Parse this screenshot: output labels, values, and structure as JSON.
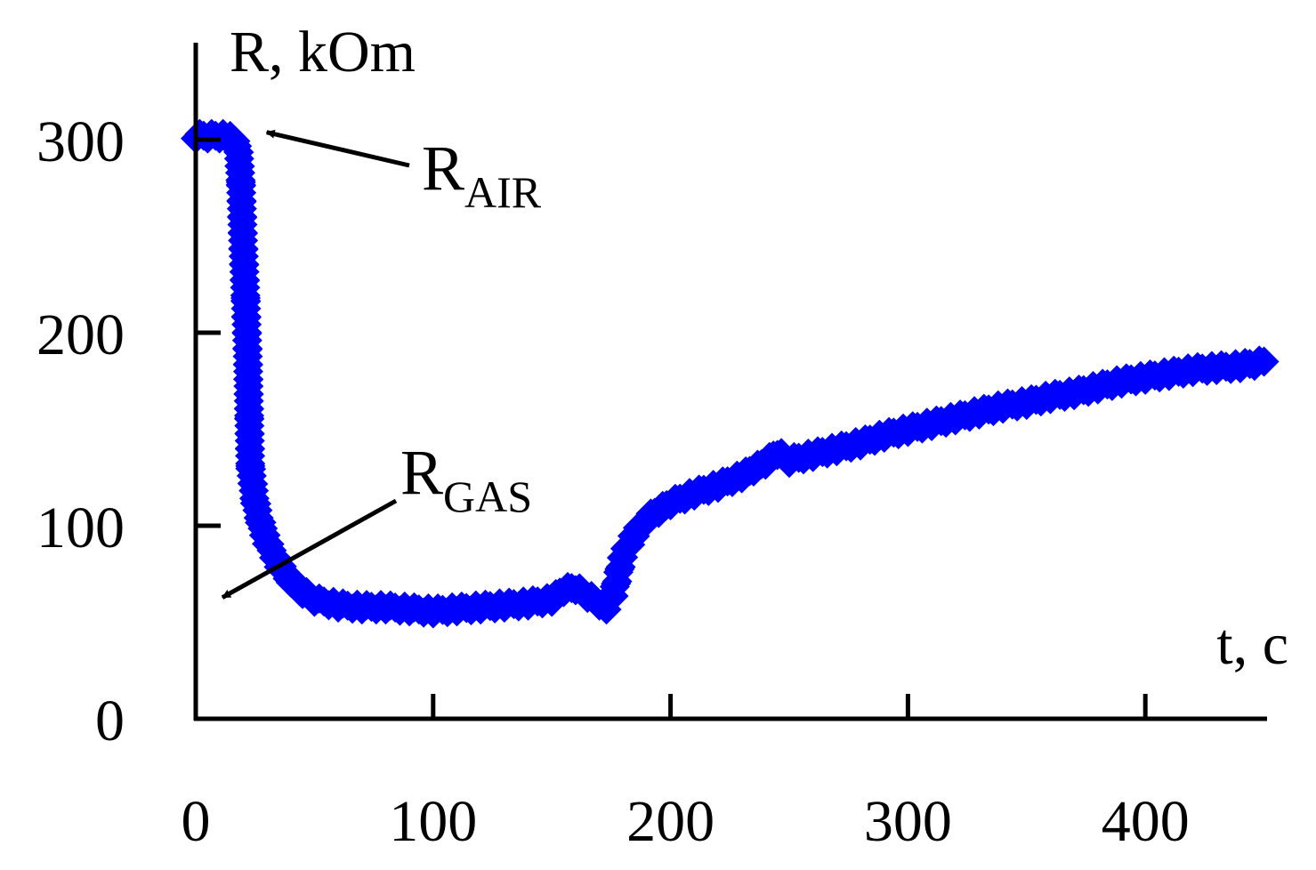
{
  "chart_data": {
    "type": "line",
    "ylabel": "R, kOm",
    "xlabel": "t, c",
    "xlim": [
      0,
      450
    ],
    "ylim": [
      0,
      300
    ],
    "x_ticks": [
      0,
      100,
      200,
      300,
      400
    ],
    "y_ticks": [
      0,
      100,
      200,
      300
    ],
    "grid": false,
    "series_color": "#0000ff",
    "line_color": "#00007a",
    "series": [
      {
        "marker": "diamond",
        "points": [
          [
            0,
            302
          ],
          [
            5,
            302
          ],
          [
            10,
            302
          ],
          [
            13,
            302
          ],
          [
            16,
            300
          ],
          [
            18,
            295
          ],
          [
            19,
            278
          ],
          [
            20,
            245
          ],
          [
            21,
            218
          ],
          [
            22,
            185
          ],
          [
            22.5,
            157
          ],
          [
            23,
            131
          ],
          [
            25,
            113
          ],
          [
            27,
            103
          ],
          [
            30,
            92
          ],
          [
            35,
            80
          ],
          [
            40,
            72
          ],
          [
            45,
            66
          ],
          [
            50,
            62
          ],
          [
            60,
            59
          ],
          [
            70,
            58
          ],
          [
            80,
            58
          ],
          [
            90,
            57
          ],
          [
            100,
            56
          ],
          [
            110,
            57
          ],
          [
            120,
            58
          ],
          [
            130,
            59
          ],
          [
            140,
            60
          ],
          [
            150,
            62
          ],
          [
            155,
            67
          ],
          [
            160,
            68
          ],
          [
            165,
            64
          ],
          [
            170,
            60
          ],
          [
            173,
            58
          ],
          [
            176,
            65
          ],
          [
            180,
            85
          ],
          [
            185,
            96
          ],
          [
            190,
            104
          ],
          [
            195,
            108
          ],
          [
            200,
            112
          ],
          [
            210,
            117
          ],
          [
            220,
            121
          ],
          [
            230,
            126
          ],
          [
            240,
            133
          ],
          [
            245,
            138
          ],
          [
            250,
            134
          ],
          [
            260,
            137
          ],
          [
            270,
            140
          ],
          [
            280,
            143
          ],
          [
            290,
            147
          ],
          [
            300,
            150
          ],
          [
            310,
            153
          ],
          [
            320,
            156
          ],
          [
            330,
            159
          ],
          [
            340,
            162
          ],
          [
            350,
            164
          ],
          [
            360,
            167
          ],
          [
            370,
            169
          ],
          [
            380,
            172
          ],
          [
            390,
            175
          ],
          [
            400,
            177
          ],
          [
            410,
            179
          ],
          [
            420,
            181
          ],
          [
            430,
            182
          ],
          [
            440,
            183
          ],
          [
            450,
            185
          ]
        ]
      }
    ],
    "annotations": [
      {
        "id": "air",
        "main": "R",
        "sub": "AIR",
        "target": [
          13,
          302
        ]
      },
      {
        "id": "gas",
        "main": "R",
        "sub": "GAS",
        "target": [
          3,
          61
        ]
      }
    ]
  }
}
